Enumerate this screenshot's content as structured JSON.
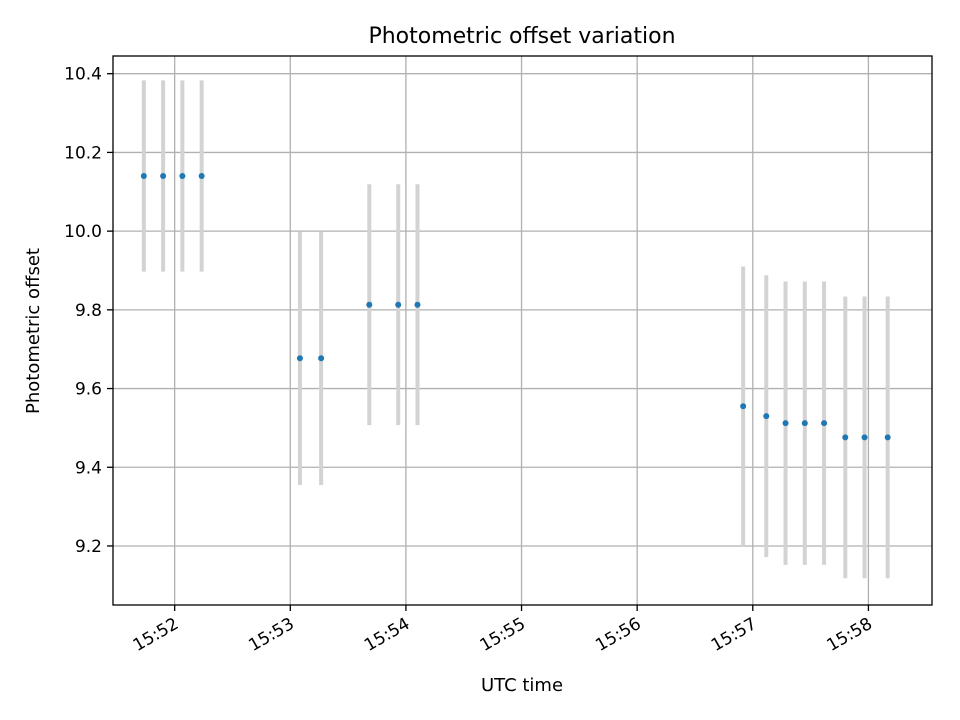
{
  "chart_data": {
    "type": "scatter",
    "title": "Photometric offset variation",
    "xlabel": "UTC time",
    "ylabel": "Photometric offset",
    "grid": true,
    "legend": "none",
    "x_ticks": [
      "15:52",
      "15:53",
      "15:54",
      "15:55",
      "15:56",
      "15:57",
      "15:58"
    ],
    "y_ticks": [
      "9.2",
      "9.4",
      "9.6",
      "9.8",
      "10.0",
      "10.2",
      "10.4"
    ],
    "xlim": [
      "15:51:28",
      "15:58:33"
    ],
    "ylim": [
      9.05,
      10.445
    ],
    "colors": {
      "point": "#1f77b4",
      "errorbar": "#d3d3d3",
      "grid": "#b0b0b0"
    },
    "series": [
      {
        "x": [
          "15:51:44",
          "15:51:54",
          "15:52:04",
          "15:52:14",
          "15:53:05",
          "15:53:16",
          "15:53:41",
          "15:53:56",
          "15:54:06",
          "15:56:55",
          "15:57:07",
          "15:57:17",
          "15:57:27",
          "15:57:37",
          "15:57:48",
          "15:57:58",
          "15:58:10"
        ],
        "y": [
          10.14,
          10.14,
          10.14,
          10.14,
          9.677,
          9.677,
          9.813,
          9.813,
          9.813,
          9.555,
          9.53,
          9.512,
          9.512,
          9.512,
          9.476,
          9.476,
          9.476
        ],
        "yerr": [
          0.243,
          0.243,
          0.243,
          0.243,
          0.322,
          0.322,
          0.306,
          0.306,
          0.306,
          0.355,
          0.358,
          0.36,
          0.36,
          0.36,
          0.358,
          0.358,
          0.358
        ]
      }
    ]
  }
}
